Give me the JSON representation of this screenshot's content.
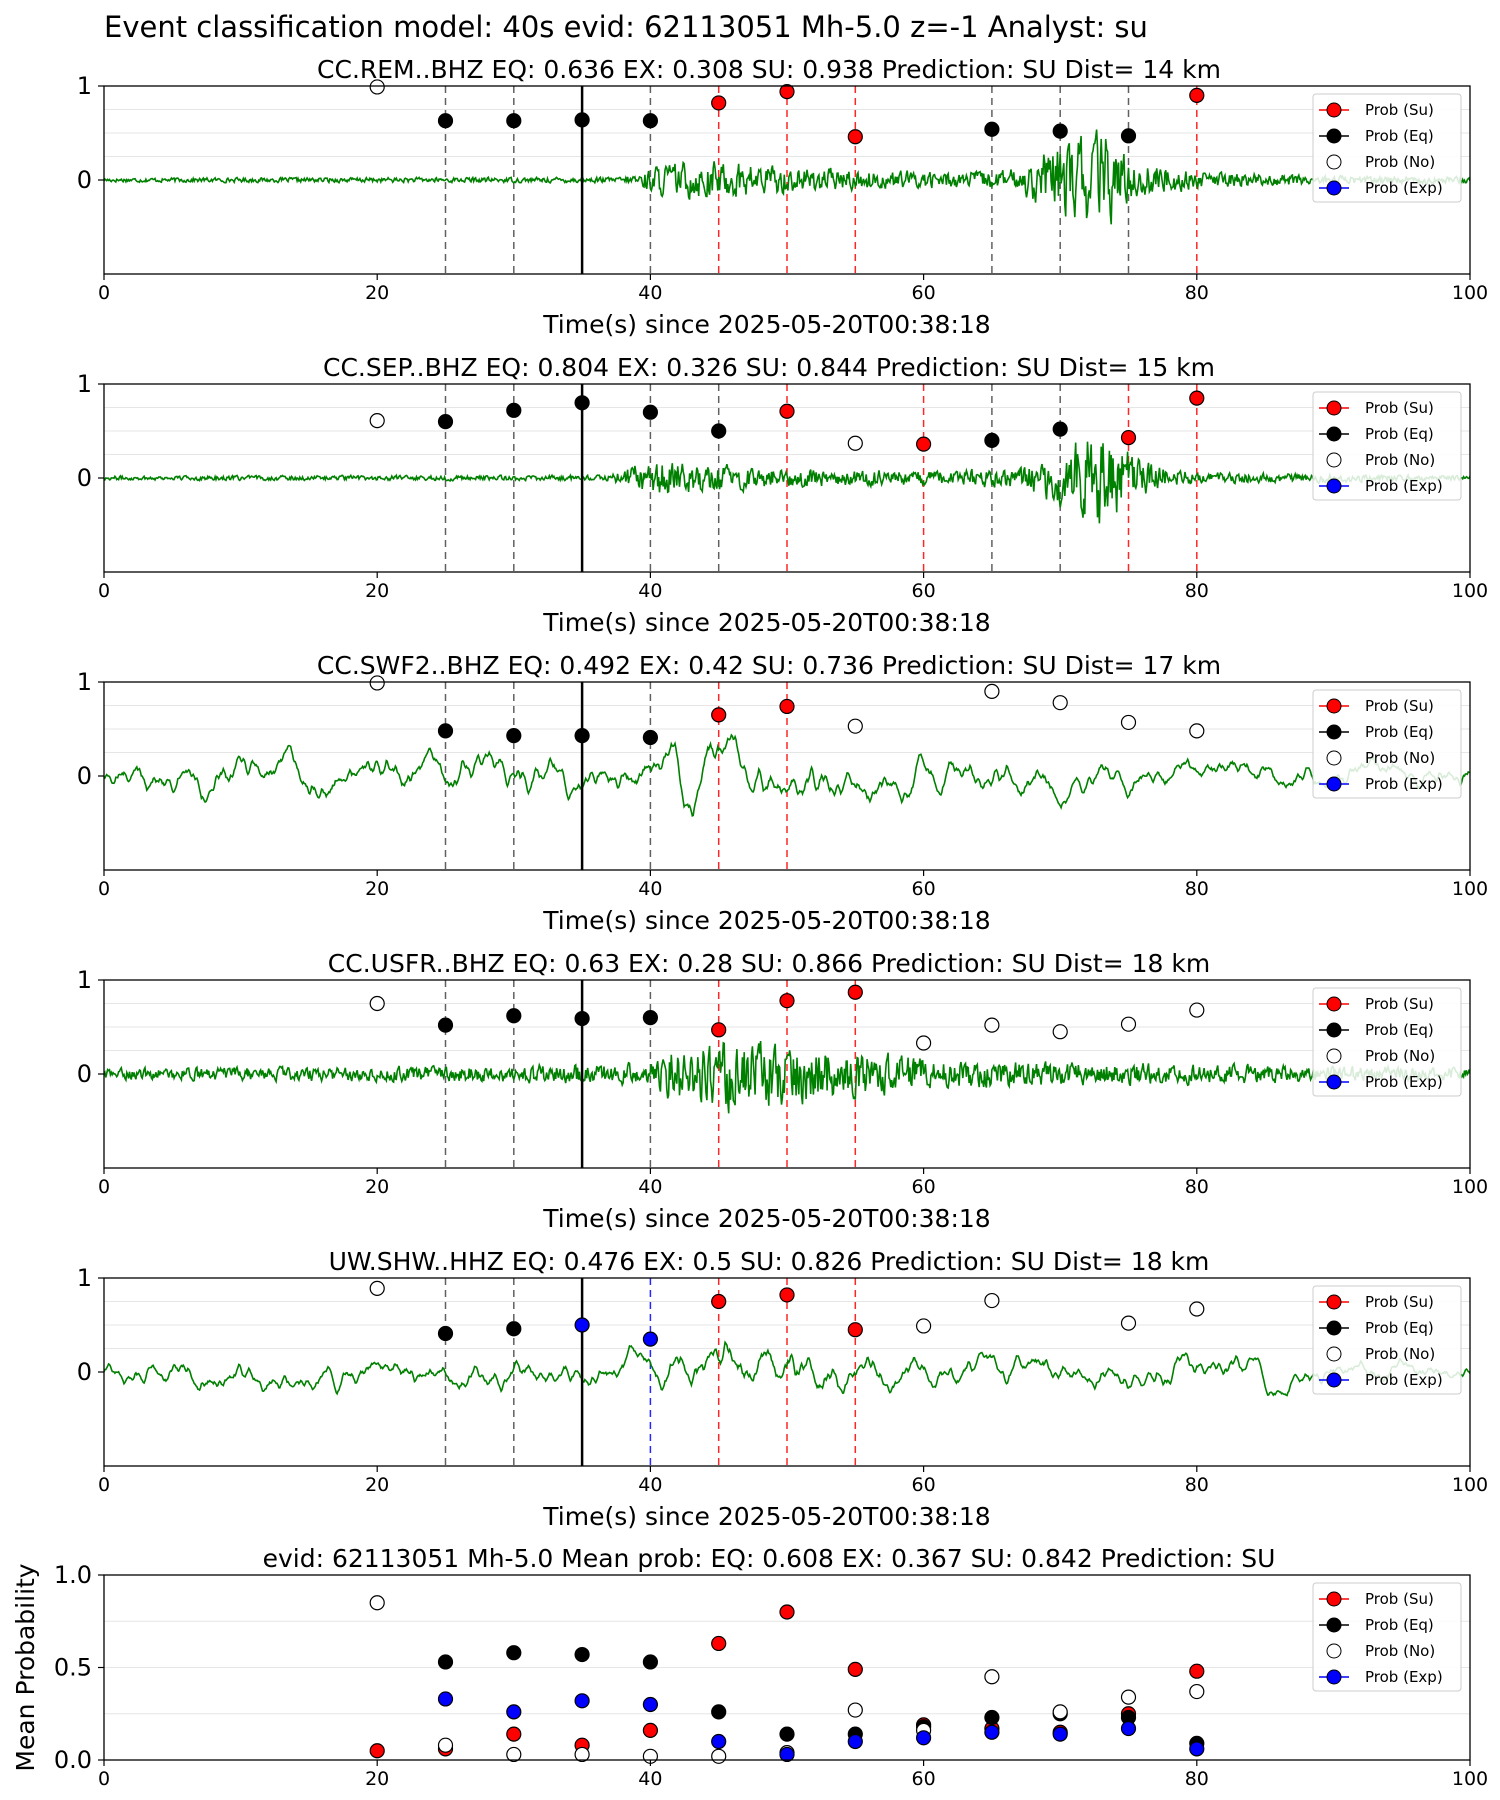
{
  "figure_title": "Event classification model: 40s evid: 62113051 Mh-5.0 z=-1 Analyst: su",
  "colors": {
    "waveform": "#008000",
    "su": "#ff0000",
    "eq": "#000000",
    "no": "#ffffff",
    "exp": "#0000ff",
    "eq_line": "#444444"
  },
  "legend_labels": [
    "Prob (Su)",
    "Prob (Eq)",
    "Prob (No)",
    "Prob (Exp)"
  ],
  "chart_data": [
    {
      "type": "scatter",
      "title": "CC.REM..BHZ   EQ: 0.636   EX: 0.308   SU: 0.938   Prediction: SU    Dist= 14 km",
      "xlabel": "Time(s) since 2025-05-20T00:38:18",
      "ylabel": "",
      "xlim": [
        0,
        100
      ],
      "xticks": [
        0,
        20,
        40,
        60,
        80,
        100
      ],
      "ylim": [
        -1,
        1
      ],
      "yticks": [
        0,
        1
      ],
      "legend": "top-right",
      "origin_line_x": 35,
      "waveform_profile": [
        [
          0,
          0.04
        ],
        [
          38,
          0.05
        ],
        [
          41,
          0.3
        ],
        [
          45,
          0.35
        ],
        [
          50,
          0.25
        ],
        [
          55,
          0.18
        ],
        [
          62,
          0.15
        ],
        [
          67,
          0.2
        ],
        [
          69,
          0.55
        ],
        [
          73,
          0.95
        ],
        [
          75,
          0.4
        ],
        [
          80,
          0.15
        ],
        [
          90,
          0.08
        ],
        [
          100,
          0.06
        ]
      ],
      "points": [
        {
          "x": 20,
          "y": 0.99,
          "class": "no"
        },
        {
          "x": 25,
          "y": 0.63,
          "class": "eq"
        },
        {
          "x": 30,
          "y": 0.63,
          "class": "eq"
        },
        {
          "x": 35,
          "y": 0.64,
          "class": "eq"
        },
        {
          "x": 40,
          "y": 0.63,
          "class": "eq"
        },
        {
          "x": 45,
          "y": 0.82,
          "class": "su"
        },
        {
          "x": 50,
          "y": 0.94,
          "class": "su"
        },
        {
          "x": 55,
          "y": 0.46,
          "class": "su"
        },
        {
          "x": 65,
          "y": 0.54,
          "class": "eq"
        },
        {
          "x": 70,
          "y": 0.52,
          "class": "eq"
        },
        {
          "x": 75,
          "y": 0.47,
          "class": "eq"
        },
        {
          "x": 80,
          "y": 0.9,
          "class": "su"
        }
      ]
    },
    {
      "type": "scatter",
      "title": "CC.SEP..BHZ   EQ: 0.804   EX: 0.326   SU: 0.844   Prediction: SU    Dist= 15 km",
      "xlabel": "Time(s) since 2025-05-20T00:38:18",
      "ylabel": "",
      "xlim": [
        0,
        100
      ],
      "xticks": [
        0,
        20,
        40,
        60,
        80,
        100
      ],
      "ylim": [
        -1,
        1
      ],
      "yticks": [
        0,
        1
      ],
      "legend": "top-right",
      "origin_line_x": 35,
      "waveform_profile": [
        [
          0,
          0.04
        ],
        [
          37,
          0.05
        ],
        [
          40,
          0.35
        ],
        [
          43,
          0.3
        ],
        [
          48,
          0.2
        ],
        [
          55,
          0.15
        ],
        [
          62,
          0.14
        ],
        [
          67,
          0.2
        ],
        [
          70,
          0.5
        ],
        [
          73,
          0.95
        ],
        [
          76,
          0.3
        ],
        [
          80,
          0.1
        ],
        [
          100,
          0.05
        ]
      ],
      "points": [
        {
          "x": 20,
          "y": 0.61,
          "class": "no"
        },
        {
          "x": 25,
          "y": 0.6,
          "class": "eq"
        },
        {
          "x": 30,
          "y": 0.72,
          "class": "eq"
        },
        {
          "x": 35,
          "y": 0.8,
          "class": "eq"
        },
        {
          "x": 40,
          "y": 0.7,
          "class": "eq"
        },
        {
          "x": 45,
          "y": 0.5,
          "class": "eq"
        },
        {
          "x": 50,
          "y": 0.71,
          "class": "su"
        },
        {
          "x": 55,
          "y": 0.37,
          "class": "no"
        },
        {
          "x": 60,
          "y": 0.36,
          "class": "su"
        },
        {
          "x": 65,
          "y": 0.4,
          "class": "eq"
        },
        {
          "x": 70,
          "y": 0.52,
          "class": "eq"
        },
        {
          "x": 75,
          "y": 0.43,
          "class": "su"
        },
        {
          "x": 80,
          "y": 0.85,
          "class": "su"
        }
      ]
    },
    {
      "type": "scatter",
      "title": "CC.SWF2..BHZ   EQ: 0.492   EX: 0.42   SU: 0.736   Prediction: SU    Dist= 17 km",
      "xlabel": "Time(s) since 2025-05-20T00:38:18",
      "ylabel": "",
      "xlim": [
        0,
        100
      ],
      "xticks": [
        0,
        20,
        40,
        60,
        80,
        100
      ],
      "ylim": [
        -1,
        1
      ],
      "yticks": [
        0,
        1
      ],
      "legend": "top-right",
      "origin_line_x": 35,
      "waveform_profile": [
        [
          0,
          0.45
        ],
        [
          40,
          0.5
        ],
        [
          43,
          0.75
        ],
        [
          47,
          0.6
        ],
        [
          55,
          0.5
        ],
        [
          70,
          0.45
        ],
        [
          100,
          0.35
        ]
      ],
      "points": [
        {
          "x": 20,
          "y": 0.99,
          "class": "no"
        },
        {
          "x": 25,
          "y": 0.48,
          "class": "eq"
        },
        {
          "x": 30,
          "y": 0.43,
          "class": "eq"
        },
        {
          "x": 35,
          "y": 0.43,
          "class": "eq"
        },
        {
          "x": 40,
          "y": 0.41,
          "class": "eq"
        },
        {
          "x": 45,
          "y": 0.65,
          "class": "su"
        },
        {
          "x": 50,
          "y": 0.74,
          "class": "su"
        },
        {
          "x": 55,
          "y": 0.53,
          "class": "no"
        },
        {
          "x": 65,
          "y": 0.9,
          "class": "no"
        },
        {
          "x": 70,
          "y": 0.78,
          "class": "no"
        },
        {
          "x": 75,
          "y": 0.57,
          "class": "no"
        },
        {
          "x": 80,
          "y": 0.48,
          "class": "no"
        }
      ]
    },
    {
      "type": "scatter",
      "title": "CC.USFR..BHZ   EQ: 0.63   EX: 0.28   SU: 0.866   Prediction: SU    Dist= 18 km",
      "xlabel": "Time(s) since 2025-05-20T00:38:18",
      "ylabel": "",
      "xlim": [
        0,
        100
      ],
      "xticks": [
        0,
        20,
        40,
        60,
        80,
        100
      ],
      "ylim": [
        -1,
        1
      ],
      "yticks": [
        0,
        1
      ],
      "legend": "top-right",
      "origin_line_x": 35,
      "waveform_profile": [
        [
          0,
          0.1
        ],
        [
          30,
          0.15
        ],
        [
          40,
          0.2
        ],
        [
          42,
          0.55
        ],
        [
          46,
          0.65
        ],
        [
          52,
          0.5
        ],
        [
          56,
          0.4
        ],
        [
          62,
          0.25
        ],
        [
          75,
          0.2
        ],
        [
          100,
          0.1
        ]
      ],
      "points": [
        {
          "x": 20,
          "y": 0.75,
          "class": "no"
        },
        {
          "x": 25,
          "y": 0.52,
          "class": "eq"
        },
        {
          "x": 30,
          "y": 0.62,
          "class": "eq"
        },
        {
          "x": 35,
          "y": 0.59,
          "class": "eq"
        },
        {
          "x": 40,
          "y": 0.6,
          "class": "eq"
        },
        {
          "x": 45,
          "y": 0.47,
          "class": "su"
        },
        {
          "x": 50,
          "y": 0.78,
          "class": "su"
        },
        {
          "x": 55,
          "y": 0.87,
          "class": "su"
        },
        {
          "x": 60,
          "y": 0.33,
          "class": "no"
        },
        {
          "x": 65,
          "y": 0.52,
          "class": "no"
        },
        {
          "x": 70,
          "y": 0.45,
          "class": "no"
        },
        {
          "x": 75,
          "y": 0.53,
          "class": "no"
        },
        {
          "x": 80,
          "y": 0.68,
          "class": "no"
        }
      ]
    },
    {
      "type": "scatter",
      "title": "UW.SHW..HHZ   EQ: 0.476   EX: 0.5   SU: 0.826   Prediction: SU    Dist= 18 km",
      "xlabel": "Time(s) since 2025-05-20T00:38:18",
      "ylabel": "",
      "xlim": [
        0,
        100
      ],
      "xticks": [
        0,
        20,
        40,
        60,
        80,
        100
      ],
      "ylim": [
        -1,
        1
      ],
      "yticks": [
        0,
        1
      ],
      "legend": "top-right",
      "origin_line_x": 35,
      "waveform_profile": [
        [
          0,
          0.35
        ],
        [
          40,
          0.4
        ],
        [
          44,
          0.7
        ],
        [
          48,
          0.6
        ],
        [
          55,
          0.45
        ],
        [
          75,
          0.4
        ],
        [
          100,
          0.3
        ]
      ],
      "points": [
        {
          "x": 20,
          "y": 0.89,
          "class": "no"
        },
        {
          "x": 25,
          "y": 0.41,
          "class": "eq"
        },
        {
          "x": 30,
          "y": 0.46,
          "class": "eq"
        },
        {
          "x": 35,
          "y": 0.5,
          "class": "exp"
        },
        {
          "x": 40,
          "y": 0.35,
          "class": "exp"
        },
        {
          "x": 45,
          "y": 0.75,
          "class": "su"
        },
        {
          "x": 50,
          "y": 0.82,
          "class": "su"
        },
        {
          "x": 55,
          "y": 0.45,
          "class": "su"
        },
        {
          "x": 60,
          "y": 0.49,
          "class": "no"
        },
        {
          "x": 65,
          "y": 0.76,
          "class": "no"
        },
        {
          "x": 75,
          "y": 0.52,
          "class": "no"
        },
        {
          "x": 80,
          "y": 0.67,
          "class": "no"
        }
      ]
    },
    {
      "type": "scatter",
      "title": "evid: 62113051  Mh-5.0   Mean prob:   EQ: 0.608  EX: 0.367  SU: 0.842   Prediction: SU",
      "xlabel": "",
      "ylabel": "Mean Probability",
      "xlim": [
        0,
        100
      ],
      "xticks": [
        0,
        20,
        40,
        60,
        80,
        100
      ],
      "ylim": [
        0,
        1
      ],
      "yticks": [
        "0.0",
        "0.5",
        "1.0"
      ],
      "legend": "top-right",
      "series": [
        {
          "name": "Prob (Su)",
          "class": "su",
          "x": [
            20,
            25,
            30,
            35,
            40,
            45,
            50,
            55,
            60,
            65,
            70,
            75,
            80
          ],
          "values": [
            0.05,
            0.06,
            0.14,
            0.08,
            0.16,
            0.63,
            0.8,
            0.49,
            0.19,
            0.17,
            0.15,
            0.25,
            0.48
          ]
        },
        {
          "name": "Prob (Eq)",
          "class": "eq",
          "x": [
            25,
            30,
            35,
            40,
            45,
            50,
            55,
            60,
            65,
            70,
            75,
            80
          ],
          "values": [
            0.53,
            0.58,
            0.57,
            0.53,
            0.26,
            0.14,
            0.14,
            0.18,
            0.23,
            0.25,
            0.23,
            0.09
          ]
        },
        {
          "name": "Prob (No)",
          "class": "no",
          "x": [
            20,
            25,
            30,
            35,
            40,
            45,
            50,
            55,
            60,
            65,
            70,
            75,
            80
          ],
          "values": [
            0.85,
            0.08,
            0.03,
            0.03,
            0.02,
            0.02,
            0.04,
            0.27,
            0.16,
            0.45,
            0.26,
            0.34,
            0.37
          ]
        },
        {
          "name": "Prob (Exp)",
          "class": "exp",
          "x": [
            25,
            30,
            35,
            40,
            45,
            50,
            55,
            60,
            65,
            70,
            75,
            80
          ],
          "values": [
            0.33,
            0.26,
            0.32,
            0.3,
            0.1,
            0.03,
            0.1,
            0.12,
            0.15,
            0.14,
            0.17,
            0.06
          ]
        }
      ]
    }
  ]
}
